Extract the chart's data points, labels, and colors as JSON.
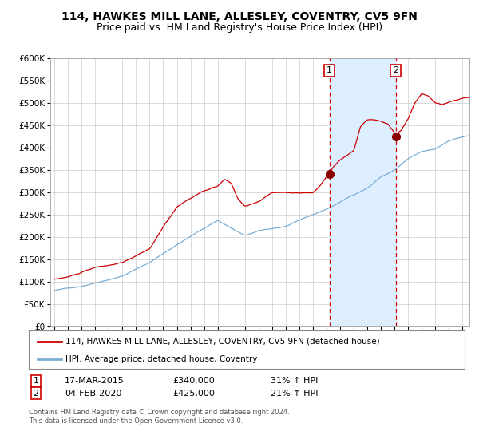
{
  "title1": "114, HAWKES MILL LANE, ALLESLEY, COVENTRY, CV5 9FN",
  "title2": "Price paid vs. HM Land Registry's House Price Index (HPI)",
  "ylim": [
    0,
    600000
  ],
  "yticks": [
    0,
    50000,
    100000,
    150000,
    200000,
    250000,
    300000,
    350000,
    400000,
    450000,
    500000,
    550000,
    600000
  ],
  "xlim_start": 1994.7,
  "xlim_end": 2025.5,
  "red_line_color": "#cc0000",
  "blue_line_color": "#7aadd4",
  "shade_color": "#ddeeff",
  "marker_color": "#880000",
  "dashed_line_color": "#cc0000",
  "purchase1_x": 2015.21,
  "purchase1_y": 340000,
  "purchase2_x": 2020.09,
  "purchase2_y": 425000,
  "legend_label1": "114, HAWKES MILL LANE, ALLESLEY, COVENTRY, CV5 9FN (detached house)",
  "legend_label2": "HPI: Average price, detached house, Coventry",
  "annotation1_date": "17-MAR-2015",
  "annotation1_price": "£340,000",
  "annotation1_hpi": "31% ↑ HPI",
  "annotation2_date": "04-FEB-2020",
  "annotation2_price": "£425,000",
  "annotation2_hpi": "21% ↑ HPI",
  "footnote": "Contains HM Land Registry data © Crown copyright and database right 2024.\nThis data is licensed under the Open Government Licence v3.0.",
  "background_color": "#ffffff",
  "grid_color": "#cccccc",
  "title1_fontsize": 10,
  "title2_fontsize": 9
}
